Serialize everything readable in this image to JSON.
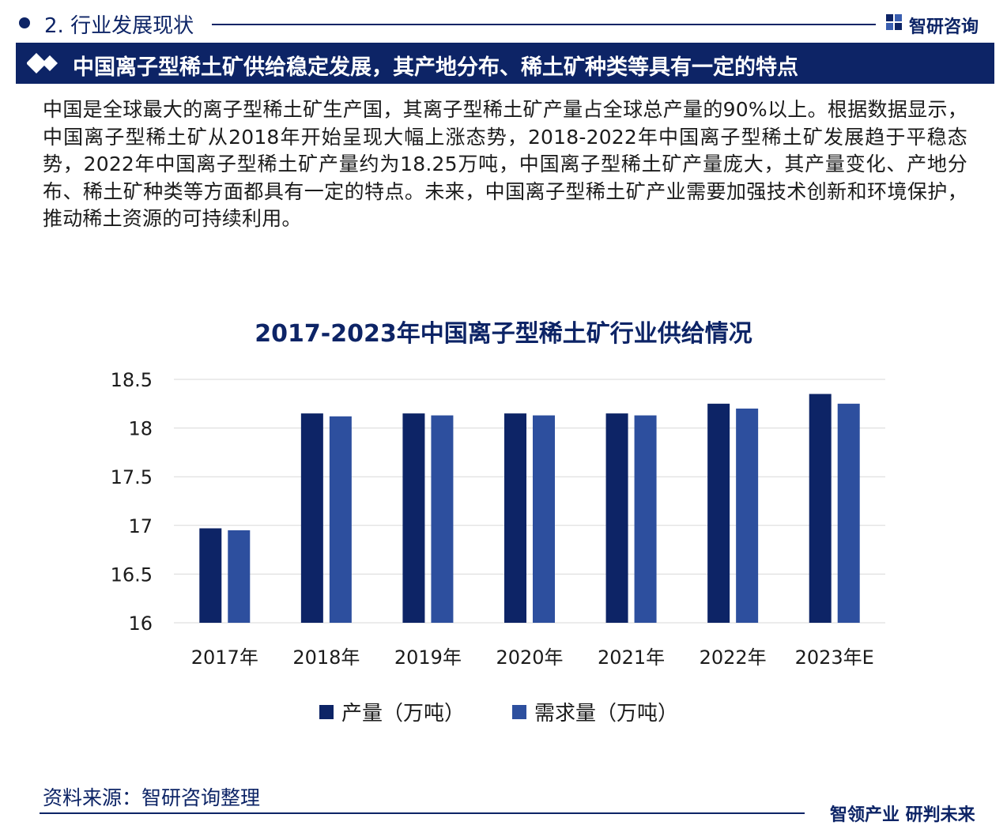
{
  "header": {
    "section_title": "2. 行业发展现状",
    "logo_text": "智研咨询"
  },
  "banner": {
    "text": "中国离子型稀土矿供给稳定发展，其产地分布、稀土矿种类等具有一定的特点"
  },
  "intro": {
    "text": "中国是全球最大的离子型稀土矿生产国，其离子型稀土矿产量占全球总产量的90%以上。根据数据显示，中国离子型稀土矿从2018年开始呈现大幅上涨态势，2018-2022年中国离子型稀土矿发展趋于平稳态势，2022年中国离子型稀土矿产量约为18.25万吨，中国离子型稀土矿产量庞大，其产量变化、产地分布、稀土矿种类等方面都具有一定的特点。未来，中国离子型稀土矿产业需要加强技术创新和环境保护，推动稀土资源的可持续利用。"
  },
  "chart_data": {
    "type": "bar",
    "title": "2017-2023年中国离子型稀土矿行业供给情况",
    "categories": [
      "2017年",
      "2018年",
      "2019年",
      "2020年",
      "2021年",
      "2022年",
      "2023年E"
    ],
    "series": [
      {
        "name": "产量（万吨）",
        "color": "#0d2466",
        "values": [
          16.97,
          18.15,
          18.15,
          18.15,
          18.15,
          18.25,
          18.35
        ]
      },
      {
        "name": "需求量（万吨）",
        "color": "#2d4f9e",
        "values": [
          16.95,
          18.12,
          18.13,
          18.13,
          18.13,
          18.2,
          18.25
        ]
      }
    ],
    "ylim": [
      16,
      18.5
    ],
    "yticks": [
      "16",
      "16.5",
      "17",
      "17.5",
      "18",
      "18.5"
    ],
    "grid": true,
    "legend_position": "bottom"
  },
  "footer": {
    "source": "资料来源：智研咨询整理",
    "slogan": "智领产业 研判未来"
  },
  "colors": {
    "brand_navy": "#0d2466",
    "bar_light": "#2d4f9e",
    "grid": "#d9d9d9"
  }
}
